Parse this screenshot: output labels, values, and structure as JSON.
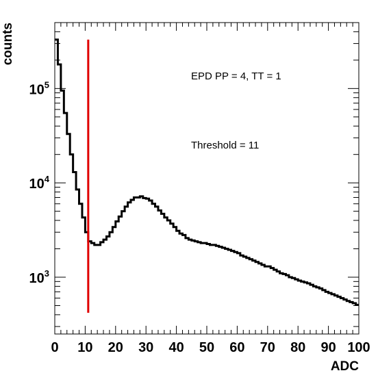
{
  "chart_data": {
    "type": "histogram",
    "xlabel": "ADC",
    "ylabel": "counts",
    "xlim": [
      0,
      100
    ],
    "ylim": [
      250,
      500000
    ],
    "log_y": true,
    "grid": false,
    "x_ticks": [
      "0",
      "10",
      "20",
      "30",
      "40",
      "50",
      "60",
      "70",
      "80",
      "90",
      "100"
    ],
    "y_ticks": [
      {
        "value": 1000,
        "base": "10",
        "exp": "3"
      },
      {
        "value": 10000,
        "base": "10",
        "exp": "4"
      },
      {
        "value": 100000,
        "base": "10",
        "exp": "5"
      }
    ],
    "annotations": [
      "EPD PP = 4, TT = 1",
      "Threshold = 11"
    ],
    "threshold": {
      "x": 11,
      "y_from": 420,
      "y_to": 330000,
      "color": "#e00000"
    },
    "bin_width": 1,
    "bin_edges_start": 0,
    "counts": [
      330000,
      180000,
      95000,
      55000,
      33000,
      20000,
      13000,
      8500,
      6000,
      4300,
      3000,
      2400,
      2300,
      2200,
      2200,
      2350,
      2500,
      2700,
      3000,
      3400,
      3900,
      4400,
      5000,
      5600,
      6200,
      6600,
      7000,
      7000,
      7200,
      6900,
      6800,
      6500,
      6000,
      5600,
      5100,
      4700,
      4300,
      4000,
      3700,
      3400,
      3100,
      2900,
      2800,
      2600,
      2500,
      2450,
      2400,
      2350,
      2300,
      2300,
      2250,
      2200,
      2200,
      2150,
      2100,
      2050,
      2000,
      1950,
      1900,
      1850,
      1800,
      1700,
      1650,
      1600,
      1550,
      1500,
      1450,
      1400,
      1350,
      1300,
      1300,
      1250,
      1200,
      1150,
      1100,
      1080,
      1050,
      1000,
      980,
      950,
      920,
      900,
      880,
      860,
      830,
      800,
      780,
      760,
      730,
      700,
      680,
      660,
      640,
      620,
      600,
      580,
      560,
      545,
      530,
      510
    ]
  }
}
